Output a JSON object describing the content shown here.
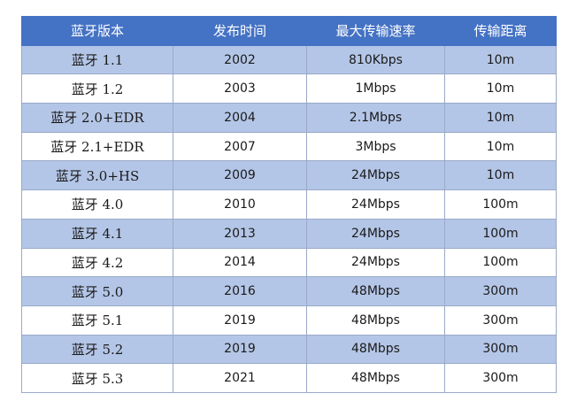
{
  "table": {
    "headers": [
      "蓝牙版本",
      "发布时间",
      "最大传输速率",
      "传输距离"
    ],
    "rows": [
      [
        "蓝牙 1.1",
        "2002",
        "810Kbps",
        "10m"
      ],
      [
        "蓝牙 1.2",
        "2003",
        "1Mbps",
        "10m"
      ],
      [
        "蓝牙 2.0+EDR",
        "2004",
        "2.1Mbps",
        "10m"
      ],
      [
        "蓝牙 2.1+EDR",
        "2007",
        "3Mbps",
        "10m"
      ],
      [
        "蓝牙 3.0+HS",
        "2009",
        "24Mbps",
        "10m"
      ],
      [
        "蓝牙 4.0",
        "2010",
        "24Mbps",
        "100m"
      ],
      [
        "蓝牙 4.1",
        "2013",
        "24Mbps",
        "100m"
      ],
      [
        "蓝牙 4.2",
        "2014",
        "24Mbps",
        "100m"
      ],
      [
        "蓝牙 5.0",
        "2016",
        "48Mbps",
        "300m"
      ],
      [
        "蓝牙 5.1",
        "2019",
        "48Mbps",
        "300m"
      ],
      [
        "蓝牙 5.2",
        "2019",
        "48Mbps",
        "300m"
      ],
      [
        "蓝牙 5.3",
        "2021",
        "48Mbps",
        "300m"
      ]
    ]
  },
  "colors": {
    "header_bg": "#4472c4",
    "header_text": "#ffffff",
    "band_row": "#b4c6e7",
    "plain_row": "#ffffff",
    "border": "#9aa9c9"
  }
}
